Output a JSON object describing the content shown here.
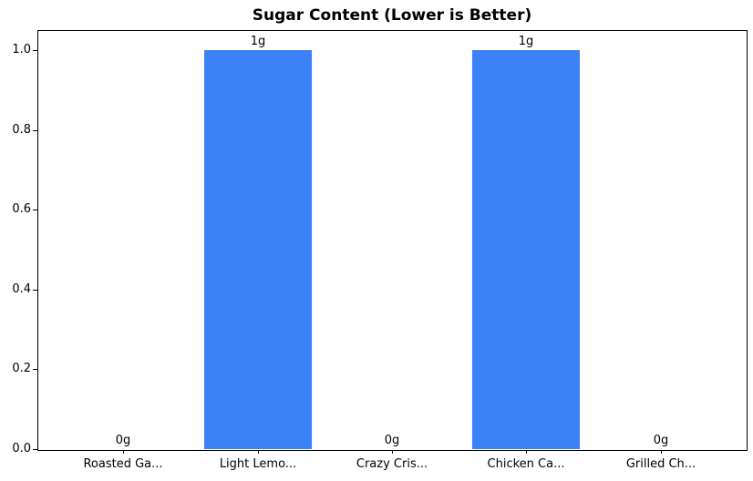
{
  "chart_data": {
    "type": "bar",
    "title": "Sugar Content (Lower is Better)",
    "categories": [
      "Roasted Ga...",
      "Light Lemo...",
      "Crazy Cris...",
      "Chicken Ca...",
      "Grilled Ch..."
    ],
    "values": [
      0,
      1,
      0,
      1,
      0
    ],
    "bar_labels": [
      "0g",
      "1g",
      "0g",
      "1g",
      "0g"
    ],
    "yticks": [
      0.0,
      0.2,
      0.4,
      0.6,
      0.8,
      1.0
    ],
    "ytick_labels": [
      "0.0",
      "0.2",
      "0.4",
      "0.6",
      "0.8",
      "1.0"
    ],
    "ylim": [
      0,
      1.05
    ],
    "xlim": [
      -0.64,
      4.64
    ],
    "bar_width": 0.8,
    "bar_color": "#3b82f6",
    "xlabel": "",
    "ylabel": "",
    "grid": "off",
    "legend": "none"
  }
}
